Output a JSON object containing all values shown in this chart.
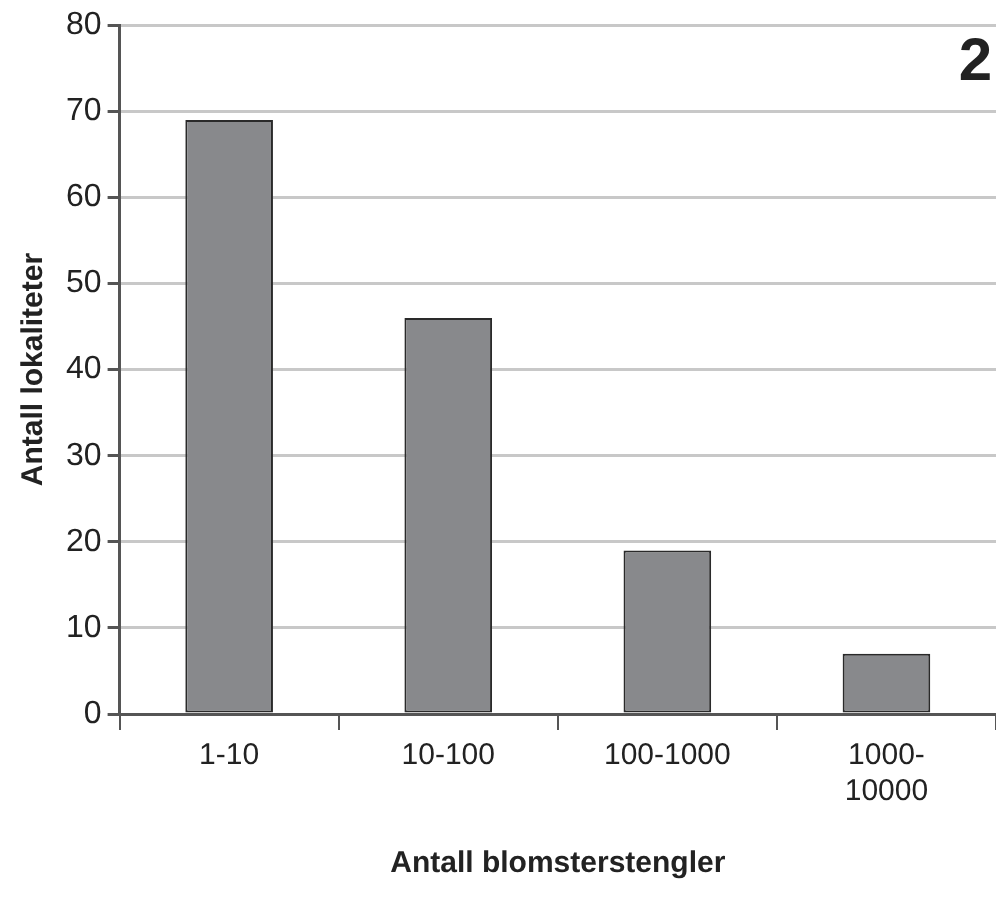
{
  "chart_data": {
    "type": "bar",
    "xlabel": "Antall blomsterstengler",
    "ylabel": "Antall lokaliteter",
    "annotations": [
      "2"
    ],
    "categories": [
      "1-10",
      "10-100",
      "100-1000",
      "1000-10000"
    ],
    "values": [
      69,
      46,
      19,
      7
    ],
    "color": "#88898c",
    "ylim": [
      0,
      80
    ],
    "yticks": [
      0,
      10,
      20,
      30,
      40,
      50,
      60,
      70,
      80
    ],
    "grid": "y"
  }
}
